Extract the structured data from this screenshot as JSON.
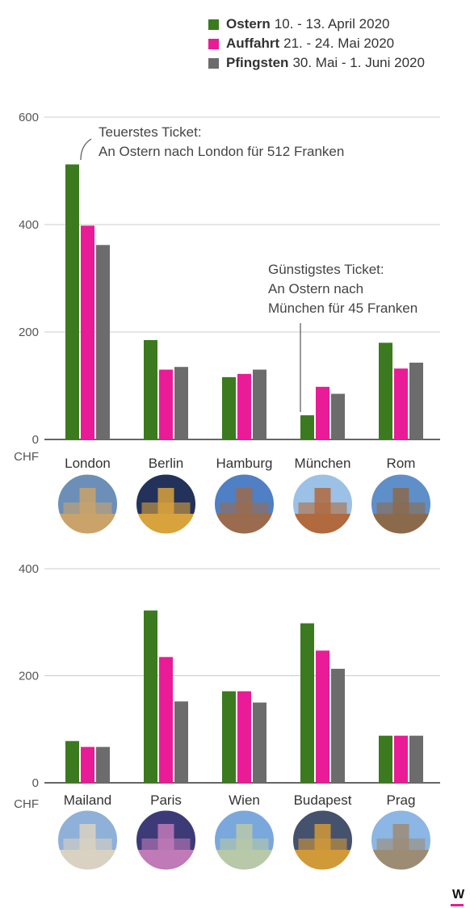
{
  "legend": [
    {
      "name": "Ostern",
      "dates": "10. - 13. April 2020",
      "color": "#3b7a1e"
    },
    {
      "name": "Auffahrt",
      "dates": "21. - 24. Mai 2020",
      "color": "#ea1b96"
    },
    {
      "name": "Pfingsten",
      "dates": "30. Mai - 1. Juni 2020",
      "color": "#6c6c6c"
    }
  ],
  "brand": {
    "logo": "W",
    "color": "#ea1b96"
  },
  "chart_data": [
    {
      "type": "bar",
      "categories": [
        "London",
        "Berlin",
        "Hamburg",
        "München",
        "Rom"
      ],
      "series": [
        {
          "name": "Ostern",
          "values": [
            512,
            185,
            116,
            45,
            180
          ]
        },
        {
          "name": "Auffahrt",
          "values": [
            398,
            130,
            122,
            98,
            132
          ]
        },
        {
          "name": "Pfingsten",
          "values": [
            362,
            135,
            130,
            85,
            143
          ]
        }
      ],
      "yticks": [
        "600",
        "400",
        "200",
        "0"
      ],
      "ytick_values": [
        600,
        400,
        200,
        0
      ],
      "unit": "CHF",
      "ylim": [
        0,
        600
      ],
      "grid": true,
      "city_icons": [
        "big-ben-icon",
        "brandenburg-gate-icon",
        "elbphilharmonie-icon",
        "frauenkirche-icon",
        "colosseum-icon"
      ],
      "annotations": [
        {
          "lines": [
            "Teuerstes Ticket:",
            "An Ostern nach London für 512 Franken"
          ]
        },
        {
          "lines": [
            "Günstigstes Ticket:",
            "An Ostern nach",
            "München für 45 Franken"
          ]
        }
      ]
    },
    {
      "type": "bar",
      "categories": [
        "Mailand",
        "Paris",
        "Wien",
        "Budapest",
        "Prag"
      ],
      "series": [
        {
          "name": "Ostern",
          "values": [
            78,
            322,
            171,
            298,
            88
          ]
        },
        {
          "name": "Auffahrt",
          "values": [
            67,
            235,
            171,
            247,
            88
          ]
        },
        {
          "name": "Pfingsten",
          "values": [
            67,
            152,
            150,
            213,
            88
          ]
        }
      ],
      "yticks": [
        "400",
        "200",
        "0"
      ],
      "ytick_values": [
        400,
        200,
        0
      ],
      "unit": "CHF",
      "ylim": [
        0,
        400
      ],
      "grid": true,
      "city_icons": [
        "milan-cathedral-icon",
        "eiffel-tower-icon",
        "belvedere-palace-icon",
        "parliament-building-icon",
        "tyn-church-icon"
      ],
      "annotations": []
    }
  ]
}
